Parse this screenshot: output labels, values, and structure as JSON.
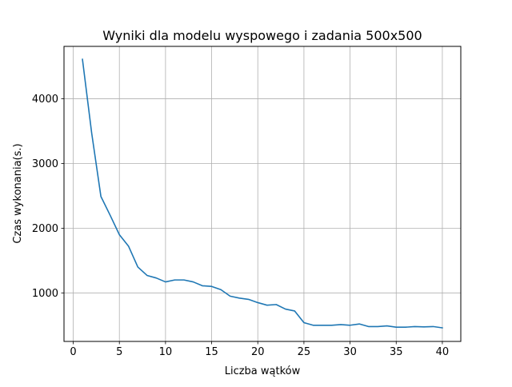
{
  "chart_data": {
    "type": "line",
    "title": "Wyniki dla modelu wyspowego i zadania 500x500",
    "xlabel": "Liczba wątków",
    "ylabel": "Czas wykonania(s.)",
    "xlim": [
      -1,
      42
    ],
    "ylim": [
      250,
      4810
    ],
    "xticks": [
      0,
      5,
      10,
      15,
      20,
      25,
      30,
      35,
      40
    ],
    "yticks": [
      1000,
      2000,
      3000,
      4000
    ],
    "grid": true,
    "series": [
      {
        "color": "#1f77b4",
        "x": [
          1,
          2,
          3,
          4,
          5,
          6,
          7,
          8,
          9,
          10,
          11,
          12,
          13,
          14,
          15,
          16,
          17,
          18,
          19,
          20,
          21,
          22,
          23,
          24,
          25,
          26,
          27,
          28,
          29,
          30,
          31,
          32,
          33,
          34,
          35,
          36,
          37,
          38,
          39,
          40
        ],
        "y": [
          4610,
          3470,
          2490,
          2200,
          1900,
          1720,
          1400,
          1270,
          1230,
          1170,
          1200,
          1200,
          1170,
          1110,
          1100,
          1050,
          950,
          920,
          900,
          850,
          810,
          820,
          750,
          720,
          540,
          500,
          500,
          500,
          510,
          500,
          520,
          480,
          480,
          490,
          470,
          470,
          480,
          475,
          480,
          460
        ]
      }
    ]
  }
}
